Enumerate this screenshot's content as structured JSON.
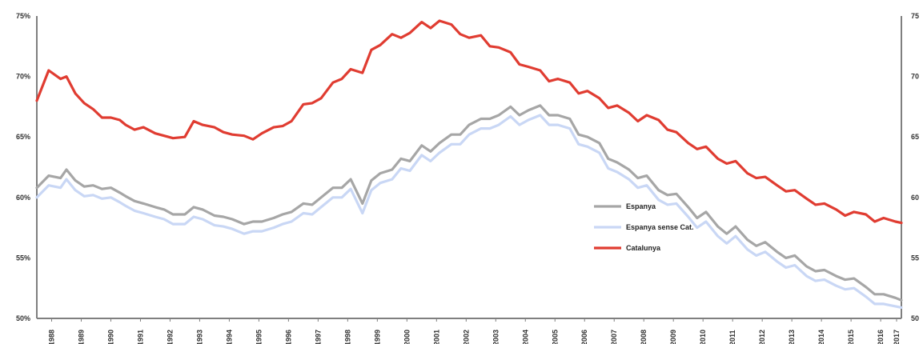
{
  "chart_data": {
    "type": "line",
    "title": "",
    "xlabel": "",
    "ylabel": "",
    "categories": [
      "1988",
      "1989",
      "1990",
      "1991",
      "1992",
      "1993",
      "1994",
      "1995",
      "1996",
      "1997",
      "1998",
      "1999",
      "2000",
      "2001",
      "2002",
      "2003",
      "2004",
      "2005",
      "2006",
      "2007",
      "2008",
      "2009",
      "2010",
      "2011",
      "2012",
      "2013",
      "2014",
      "2015",
      "2016",
      "2017"
    ],
    "x_tick_labels": [
      "1988",
      "1989",
      "1990",
      "1991",
      "1992",
      "1993",
      "1994",
      "1995",
      "1996",
      "1997",
      "1998",
      "1999",
      "2000",
      "2001",
      "2002",
      "2003",
      "2004",
      "2005",
      "2006",
      "2007",
      "2008",
      "2009",
      "2010",
      "2011",
      "2012",
      "2013",
      "2014",
      "2015",
      "2016",
      "2017"
    ],
    "x_range": [
      1988.0,
      2017.2
    ],
    "ylim": [
      50,
      75
    ],
    "y_ticks_left": [
      50,
      55,
      60,
      65,
      70,
      75
    ],
    "y_tick_labels_left": [
      "50%",
      "55%",
      "60%",
      "65%",
      "70%",
      "75%"
    ],
    "y_ticks_right": [
      50,
      55,
      60,
      65,
      70,
      75
    ],
    "y_tick_labels_right": [
      "50",
      "55",
      "60",
      "65",
      "70",
      "75"
    ],
    "grid": false,
    "legend_position": "center-right",
    "series": [
      {
        "name": "Espanya",
        "color": "#a6a6a6",
        "points": [
          [
            1988.0,
            60.8
          ],
          [
            1988.4,
            61.8
          ],
          [
            1988.8,
            61.6
          ],
          [
            1989.0,
            62.3
          ],
          [
            1989.3,
            61.4
          ],
          [
            1989.6,
            60.9
          ],
          [
            1989.9,
            61.0
          ],
          [
            1990.2,
            60.7
          ],
          [
            1990.5,
            60.8
          ],
          [
            1990.8,
            60.4
          ],
          [
            1991.0,
            60.1
          ],
          [
            1991.3,
            59.7
          ],
          [
            1991.6,
            59.5
          ],
          [
            1992.0,
            59.2
          ],
          [
            1992.3,
            59.0
          ],
          [
            1992.6,
            58.6
          ],
          [
            1993.0,
            58.6
          ],
          [
            1993.3,
            59.2
          ],
          [
            1993.6,
            59.0
          ],
          [
            1994.0,
            58.5
          ],
          [
            1994.3,
            58.4
          ],
          [
            1994.6,
            58.2
          ],
          [
            1995.0,
            57.8
          ],
          [
            1995.3,
            58.0
          ],
          [
            1995.6,
            58.0
          ],
          [
            1996.0,
            58.3
          ],
          [
            1996.3,
            58.6
          ],
          [
            1996.6,
            58.8
          ],
          [
            1997.0,
            59.5
          ],
          [
            1997.3,
            59.4
          ],
          [
            1997.6,
            60.0
          ],
          [
            1998.0,
            60.8
          ],
          [
            1998.3,
            60.8
          ],
          [
            1998.6,
            61.5
          ],
          [
            1999.0,
            59.5
          ],
          [
            1999.3,
            61.4
          ],
          [
            1999.6,
            62.0
          ],
          [
            2000.0,
            62.3
          ],
          [
            2000.3,
            63.2
          ],
          [
            2000.6,
            63.0
          ],
          [
            2001.0,
            64.3
          ],
          [
            2001.3,
            63.8
          ],
          [
            2001.6,
            64.5
          ],
          [
            2002.0,
            65.2
          ],
          [
            2002.3,
            65.2
          ],
          [
            2002.6,
            66.0
          ],
          [
            2003.0,
            66.5
          ],
          [
            2003.3,
            66.5
          ],
          [
            2003.6,
            66.8
          ],
          [
            2004.0,
            67.5
          ],
          [
            2004.3,
            66.8
          ],
          [
            2004.6,
            67.2
          ],
          [
            2005.0,
            67.6
          ],
          [
            2005.3,
            66.8
          ],
          [
            2005.6,
            66.8
          ],
          [
            2006.0,
            66.5
          ],
          [
            2006.3,
            65.2
          ],
          [
            2006.6,
            65.0
          ],
          [
            2007.0,
            64.5
          ],
          [
            2007.3,
            63.2
          ],
          [
            2007.6,
            62.9
          ],
          [
            2008.0,
            62.3
          ],
          [
            2008.3,
            61.6
          ],
          [
            2008.6,
            61.8
          ],
          [
            2009.0,
            60.6
          ],
          [
            2009.3,
            60.2
          ],
          [
            2009.6,
            60.3
          ],
          [
            2010.0,
            59.2
          ],
          [
            2010.3,
            58.3
          ],
          [
            2010.6,
            58.8
          ],
          [
            2011.0,
            57.6
          ],
          [
            2011.3,
            57.0
          ],
          [
            2011.6,
            57.6
          ],
          [
            2012.0,
            56.5
          ],
          [
            2012.3,
            56.0
          ],
          [
            2012.6,
            56.3
          ],
          [
            2013.0,
            55.5
          ],
          [
            2013.3,
            55.0
          ],
          [
            2013.6,
            55.2
          ],
          [
            2014.0,
            54.3
          ],
          [
            2014.3,
            53.9
          ],
          [
            2014.6,
            54.0
          ],
          [
            2015.0,
            53.5
          ],
          [
            2015.3,
            53.2
          ],
          [
            2015.6,
            53.3
          ],
          [
            2016.0,
            52.6
          ],
          [
            2016.3,
            52.0
          ],
          [
            2016.6,
            52.0
          ],
          [
            2017.0,
            51.7
          ],
          [
            2017.2,
            51.5
          ]
        ]
      },
      {
        "name": "Espanya sense Cat.",
        "color": "#c9d7f5",
        "points": [
          [
            1988.0,
            60.0
          ],
          [
            1988.4,
            61.0
          ],
          [
            1988.8,
            60.8
          ],
          [
            1989.0,
            61.5
          ],
          [
            1989.3,
            60.6
          ],
          [
            1989.6,
            60.1
          ],
          [
            1989.9,
            60.2
          ],
          [
            1990.2,
            59.9
          ],
          [
            1990.5,
            60.0
          ],
          [
            1990.8,
            59.6
          ],
          [
            1991.0,
            59.3
          ],
          [
            1991.3,
            58.9
          ],
          [
            1991.6,
            58.7
          ],
          [
            1992.0,
            58.4
          ],
          [
            1992.3,
            58.2
          ],
          [
            1992.6,
            57.8
          ],
          [
            1993.0,
            57.8
          ],
          [
            1993.3,
            58.4
          ],
          [
            1993.6,
            58.2
          ],
          [
            1994.0,
            57.7
          ],
          [
            1994.3,
            57.6
          ],
          [
            1994.6,
            57.4
          ],
          [
            1995.0,
            57.0
          ],
          [
            1995.3,
            57.2
          ],
          [
            1995.6,
            57.2
          ],
          [
            1996.0,
            57.5
          ],
          [
            1996.3,
            57.8
          ],
          [
            1996.6,
            58.0
          ],
          [
            1997.0,
            58.7
          ],
          [
            1997.3,
            58.6
          ],
          [
            1997.6,
            59.2
          ],
          [
            1998.0,
            60.0
          ],
          [
            1998.3,
            60.0
          ],
          [
            1998.6,
            60.7
          ],
          [
            1999.0,
            58.7
          ],
          [
            1999.3,
            60.6
          ],
          [
            1999.6,
            61.2
          ],
          [
            2000.0,
            61.5
          ],
          [
            2000.3,
            62.4
          ],
          [
            2000.6,
            62.2
          ],
          [
            2001.0,
            63.5
          ],
          [
            2001.3,
            63.0
          ],
          [
            2001.6,
            63.7
          ],
          [
            2002.0,
            64.4
          ],
          [
            2002.3,
            64.4
          ],
          [
            2002.6,
            65.2
          ],
          [
            2003.0,
            65.7
          ],
          [
            2003.3,
            65.7
          ],
          [
            2003.6,
            66.0
          ],
          [
            2004.0,
            66.7
          ],
          [
            2004.3,
            66.0
          ],
          [
            2004.6,
            66.4
          ],
          [
            2005.0,
            66.8
          ],
          [
            2005.3,
            66.0
          ],
          [
            2005.6,
            66.0
          ],
          [
            2006.0,
            65.7
          ],
          [
            2006.3,
            64.4
          ],
          [
            2006.6,
            64.2
          ],
          [
            2007.0,
            63.7
          ],
          [
            2007.3,
            62.4
          ],
          [
            2007.6,
            62.1
          ],
          [
            2008.0,
            61.5
          ],
          [
            2008.3,
            60.8
          ],
          [
            2008.6,
            61.0
          ],
          [
            2009.0,
            59.8
          ],
          [
            2009.3,
            59.4
          ],
          [
            2009.6,
            59.5
          ],
          [
            2010.0,
            58.4
          ],
          [
            2010.3,
            57.5
          ],
          [
            2010.6,
            58.0
          ],
          [
            2011.0,
            56.8
          ],
          [
            2011.3,
            56.2
          ],
          [
            2011.6,
            56.8
          ],
          [
            2012.0,
            55.7
          ],
          [
            2012.3,
            55.2
          ],
          [
            2012.6,
            55.5
          ],
          [
            2013.0,
            54.7
          ],
          [
            2013.3,
            54.2
          ],
          [
            2013.6,
            54.4
          ],
          [
            2014.0,
            53.5
          ],
          [
            2014.3,
            53.1
          ],
          [
            2014.6,
            53.2
          ],
          [
            2015.0,
            52.7
          ],
          [
            2015.3,
            52.4
          ],
          [
            2015.6,
            52.5
          ],
          [
            2016.0,
            51.8
          ],
          [
            2016.3,
            51.2
          ],
          [
            2016.6,
            51.2
          ],
          [
            2017.0,
            51.0
          ],
          [
            2017.2,
            50.9
          ]
        ]
      },
      {
        "name": "Catalunya",
        "color": "#e03c31",
        "points": [
          [
            1988.0,
            68.0
          ],
          [
            1988.4,
            70.5
          ],
          [
            1988.8,
            69.8
          ],
          [
            1989.0,
            70.0
          ],
          [
            1989.3,
            68.6
          ],
          [
            1989.6,
            67.8
          ],
          [
            1989.9,
            67.3
          ],
          [
            1990.2,
            66.6
          ],
          [
            1990.5,
            66.6
          ],
          [
            1990.8,
            66.4
          ],
          [
            1991.0,
            66.0
          ],
          [
            1991.3,
            65.6
          ],
          [
            1991.6,
            65.8
          ],
          [
            1992.0,
            65.3
          ],
          [
            1992.3,
            65.1
          ],
          [
            1992.6,
            64.9
          ],
          [
            1993.0,
            65.0
          ],
          [
            1993.3,
            66.3
          ],
          [
            1993.6,
            66.0
          ],
          [
            1994.0,
            65.8
          ],
          [
            1994.3,
            65.4
          ],
          [
            1994.6,
            65.2
          ],
          [
            1995.0,
            65.1
          ],
          [
            1995.3,
            64.8
          ],
          [
            1995.6,
            65.3
          ],
          [
            1996.0,
            65.8
          ],
          [
            1996.3,
            65.9
          ],
          [
            1996.6,
            66.3
          ],
          [
            1997.0,
            67.7
          ],
          [
            1997.3,
            67.8
          ],
          [
            1997.6,
            68.2
          ],
          [
            1998.0,
            69.5
          ],
          [
            1998.3,
            69.8
          ],
          [
            1998.6,
            70.6
          ],
          [
            1999.0,
            70.3
          ],
          [
            1999.3,
            72.2
          ],
          [
            1999.6,
            72.6
          ],
          [
            2000.0,
            73.5
          ],
          [
            2000.3,
            73.2
          ],
          [
            2000.6,
            73.6
          ],
          [
            2001.0,
            74.5
          ],
          [
            2001.3,
            74.0
          ],
          [
            2001.6,
            74.6
          ],
          [
            2002.0,
            74.3
          ],
          [
            2002.3,
            73.5
          ],
          [
            2002.6,
            73.2
          ],
          [
            2003.0,
            73.4
          ],
          [
            2003.3,
            72.5
          ],
          [
            2003.6,
            72.4
          ],
          [
            2004.0,
            72.0
          ],
          [
            2004.3,
            71.0
          ],
          [
            2004.6,
            70.8
          ],
          [
            2005.0,
            70.5
          ],
          [
            2005.3,
            69.6
          ],
          [
            2005.6,
            69.8
          ],
          [
            2006.0,
            69.5
          ],
          [
            2006.3,
            68.6
          ],
          [
            2006.6,
            68.8
          ],
          [
            2007.0,
            68.2
          ],
          [
            2007.3,
            67.4
          ],
          [
            2007.6,
            67.6
          ],
          [
            2008.0,
            67.0
          ],
          [
            2008.3,
            66.3
          ],
          [
            2008.6,
            66.8
          ],
          [
            2009.0,
            66.4
          ],
          [
            2009.3,
            65.6
          ],
          [
            2009.6,
            65.4
          ],
          [
            2010.0,
            64.5
          ],
          [
            2010.3,
            64.0
          ],
          [
            2010.6,
            64.2
          ],
          [
            2011.0,
            63.2
          ],
          [
            2011.3,
            62.8
          ],
          [
            2011.6,
            63.0
          ],
          [
            2012.0,
            62.0
          ],
          [
            2012.3,
            61.6
          ],
          [
            2012.6,
            61.7
          ],
          [
            2013.0,
            61.0
          ],
          [
            2013.3,
            60.5
          ],
          [
            2013.6,
            60.6
          ],
          [
            2014.0,
            59.9
          ],
          [
            2014.3,
            59.4
          ],
          [
            2014.6,
            59.5
          ],
          [
            2015.0,
            59.0
          ],
          [
            2015.3,
            58.5
          ],
          [
            2015.6,
            58.8
          ],
          [
            2016.0,
            58.6
          ],
          [
            2016.3,
            58.0
          ],
          [
            2016.6,
            58.3
          ],
          [
            2017.0,
            58.0
          ],
          [
            2017.2,
            57.9
          ]
        ]
      }
    ]
  }
}
